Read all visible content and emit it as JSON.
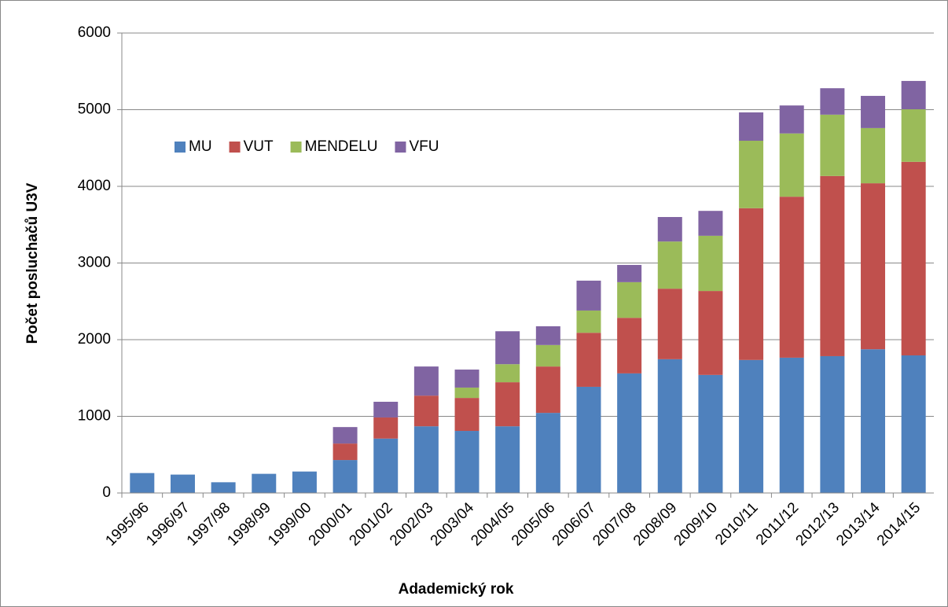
{
  "chart_data": {
    "type": "stacked_bar",
    "xlabel": "Adademický rok",
    "ylabel": "Počet posluchačů U3V",
    "categories": [
      "1995/96",
      "1996/97",
      "1997/98",
      "1998/99",
      "1999/00",
      "2000/01",
      "2001/02",
      "2002/03",
      "2003/04",
      "2004/05",
      "2005/06",
      "2006/07",
      "2007/08",
      "2008/09",
      "2009/10",
      "2010/11",
      "2011/12",
      "2012/13",
      "2013/14",
      "2014/15"
    ],
    "series": [
      {
        "name": "MU",
        "color": "#4f81bd",
        "values": [
          260,
          240,
          140,
          250,
          280,
          430,
          710,
          870,
          810,
          870,
          1045,
          1385,
          1560,
          1745,
          1540,
          1735,
          1765,
          1785,
          1875,
          1795
        ]
      },
      {
        "name": "VUT",
        "color": "#c0504d",
        "values": [
          0,
          0,
          0,
          0,
          0,
          215,
          275,
          400,
          430,
          575,
          605,
          705,
          725,
          920,
          1095,
          1980,
          2100,
          2350,
          2165,
          2525
        ]
      },
      {
        "name": "MENDELU",
        "color": "#9bbb59",
        "values": [
          0,
          0,
          0,
          0,
          0,
          0,
          0,
          0,
          135,
          235,
          280,
          290,
          465,
          615,
          720,
          880,
          825,
          800,
          720,
          685
        ]
      },
      {
        "name": "VFU",
        "color": "#8064a2",
        "values": [
          0,
          0,
          0,
          0,
          0,
          215,
          205,
          380,
          235,
          430,
          245,
          390,
          225,
          320,
          325,
          370,
          365,
          345,
          420,
          370
        ]
      }
    ],
    "ylim": [
      0,
      6000
    ],
    "yticks": [
      0,
      1000,
      2000,
      3000,
      4000,
      5000,
      6000
    ],
    "grid": true,
    "legend": "upper left"
  }
}
